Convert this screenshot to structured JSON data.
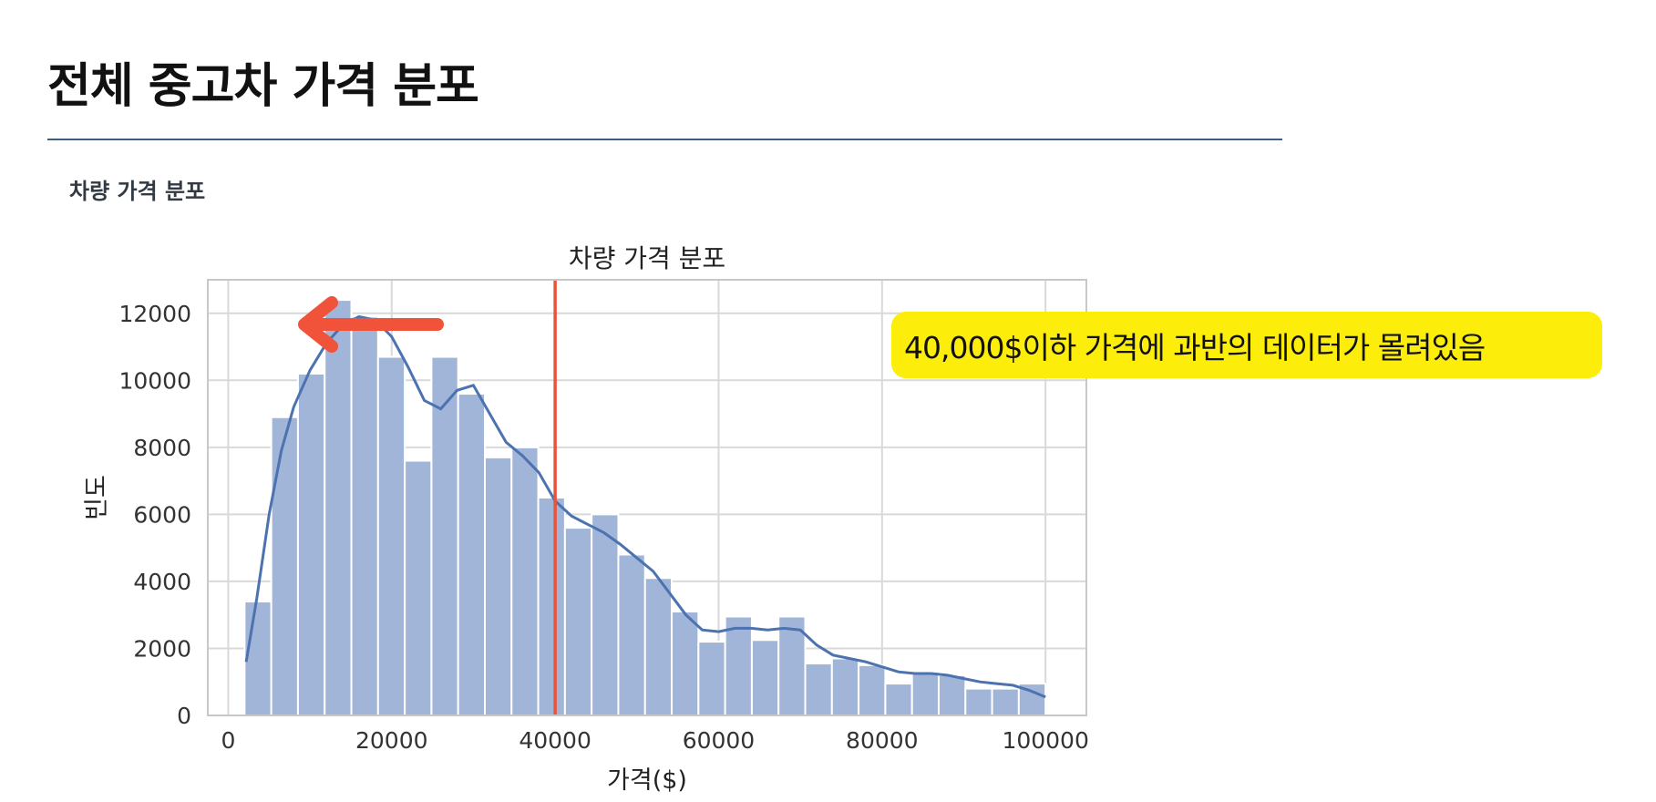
{
  "page": {
    "title": "전체 중고차 가격 분포",
    "section_label": "차량 가격 분포",
    "annotation": "40,000$이하 가격에 과반의 데이터가 몰려있음"
  },
  "colors": {
    "bar_fill": "#a1b5d8",
    "kde_line": "#4c72b0",
    "threshold_line": "#e8543a",
    "arrow": "#f0533a",
    "annotation_bg": "#fcee0a",
    "title_rule": "#3f5f80",
    "grid": "#d9d9d9"
  },
  "chart_data": {
    "type": "bar",
    "title": "차량 가격 분포",
    "xlabel": "가격($)",
    "ylabel": "빈도",
    "xlim": [
      -2500,
      105000
    ],
    "ylim": [
      0,
      13000
    ],
    "x_ticks": [
      0,
      20000,
      40000,
      60000,
      80000,
      100000
    ],
    "y_ticks": [
      0,
      2000,
      4000,
      6000,
      8000,
      10000,
      12000
    ],
    "grid": true,
    "bin_edges": [
      2000,
      5266,
      8533,
      11800,
      15066,
      18333,
      21600,
      24866,
      28133,
      31400,
      34666,
      37933,
      41200,
      44466,
      47733,
      51000,
      54266,
      57533,
      60800,
      64066,
      67333,
      70600,
      73866,
      77133,
      80400,
      83666,
      86933,
      90200,
      93466,
      96733,
      100000
    ],
    "counts": [
      3400,
      8900,
      10200,
      12400,
      11900,
      10700,
      7600,
      10700,
      9600,
      7700,
      8000,
      6500,
      5600,
      6000,
      4800,
      4100,
      3100,
      2200,
      2950,
      2250,
      2950,
      1550,
      1700,
      1500,
      950,
      1300,
      1200,
      800,
      800,
      950
    ],
    "kde_line": {
      "x": [
        2200,
        3500,
        5000,
        6500,
        8000,
        10000,
        12000,
        14000,
        16000,
        18000,
        20000,
        22000,
        24000,
        26000,
        28000,
        30000,
        32000,
        34000,
        36000,
        38000,
        40000,
        42000,
        44000,
        46000,
        48000,
        50000,
        52000,
        54000,
        56000,
        58000,
        60000,
        62000,
        64000,
        66000,
        68000,
        70000,
        72000,
        74000,
        76000,
        78000,
        80000,
        82000,
        84000,
        86000,
        88000,
        90000,
        92000,
        94000,
        96000,
        98000,
        100000
      ],
      "y": [
        1600,
        3500,
        6000,
        7900,
        9200,
        10300,
        11100,
        11650,
        11900,
        11800,
        11300,
        10400,
        9400,
        9150,
        9700,
        9850,
        9000,
        8150,
        7750,
        7250,
        6400,
        5950,
        5700,
        5450,
        5100,
        4700,
        4300,
        3650,
        3000,
        2550,
        2500,
        2600,
        2600,
        2550,
        2600,
        2550,
        2100,
        1800,
        1700,
        1600,
        1450,
        1300,
        1250,
        1250,
        1200,
        1100,
        1000,
        950,
        900,
        750,
        550
      ]
    },
    "threshold_x": 40000,
    "annotations": [
      "40,000$이하 가격에 과반의 데이터가 몰려있음"
    ]
  }
}
